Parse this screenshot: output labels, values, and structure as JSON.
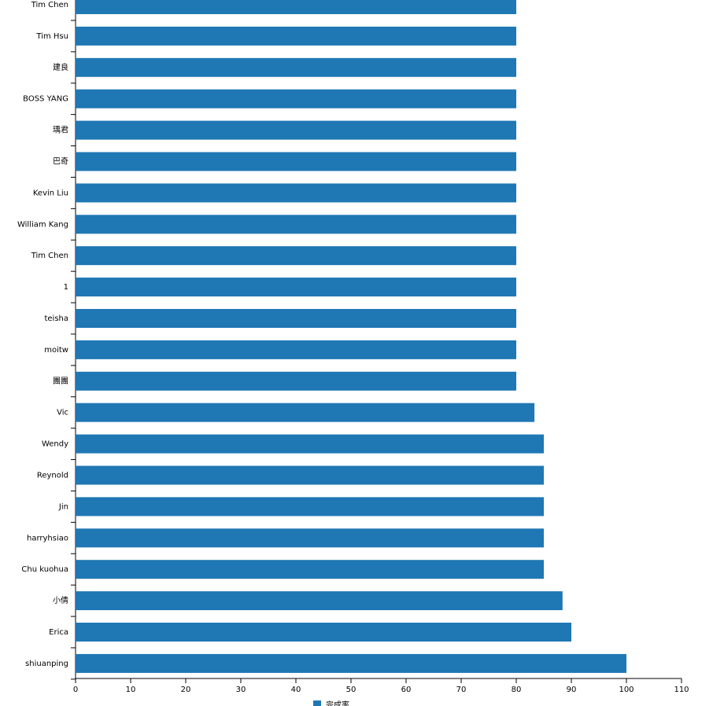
{
  "chart_data": {
    "type": "bar",
    "orientation": "horizontal",
    "categories": [
      "Tim Chen",
      "Tim Hsu",
      "建良",
      "BOSS YANG",
      "瑀君",
      "巴奇",
      "Kevin Liu",
      "William Kang",
      "Tim Chen",
      "1",
      "teisha",
      "moitw",
      "團團",
      "Vic",
      "Wendy",
      "Reynold",
      "Jin",
      "harryhsiao",
      "Chu kuohua",
      "小倩",
      "Erica",
      "shiuanping"
    ],
    "series": [
      {
        "name": "完成率",
        "color": "#1f77b4",
        "values": [
          80,
          80,
          80,
          80,
          80,
          80,
          80,
          80,
          80,
          80,
          80,
          80,
          80,
          83.3,
          85,
          85,
          85,
          85,
          85,
          88.4,
          90,
          100
        ]
      }
    ],
    "xlim": [
      0,
      110
    ],
    "xticks": [
      0,
      10,
      20,
      30,
      40,
      50,
      60,
      70,
      80,
      90,
      100,
      110
    ]
  }
}
